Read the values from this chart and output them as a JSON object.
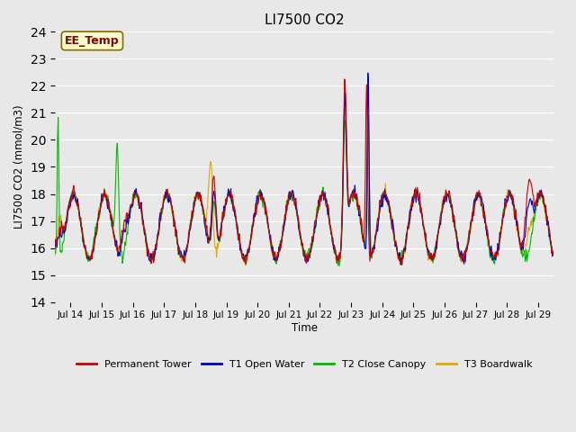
{
  "title": "LI7500 CO2",
  "ylabel": "LI7500 CO2 (mmol/m3)",
  "xlabel": "Time",
  "ylim": [
    14.0,
    24.0
  ],
  "yticks": [
    14.0,
    15.0,
    16.0,
    17.0,
    18.0,
    19.0,
    20.0,
    21.0,
    22.0,
    23.0,
    24.0
  ],
  "xtick_labels": [
    "Jul 14",
    "Jul 15",
    "Jul 16",
    "Jul 17",
    "Jul 18",
    "Jul 19",
    "Jul 20",
    "Jul 21",
    "Jul 22",
    "Jul 23",
    "Jul 24",
    "Jul 25",
    "Jul 26",
    "Jul 27",
    "Jul 28",
    "Jul 29"
  ],
  "colors": {
    "permanent_tower": "#cc0000",
    "t1_open_water": "#0000cc",
    "t2_close_canopy": "#00bb00",
    "t3_boardwalk": "#ddaa00"
  },
  "background_color": "#e8e8e8",
  "plot_bg_color": "#e8e8e8",
  "annotation_text": "EE_Temp",
  "annotation_bg": "#ffffcc",
  "annotation_border": "#886600",
  "annotation_text_color": "#880000",
  "legend": [
    "Permanent Tower",
    "T1 Open Water",
    "T2 Close Canopy",
    "T3 Boardwalk"
  ]
}
